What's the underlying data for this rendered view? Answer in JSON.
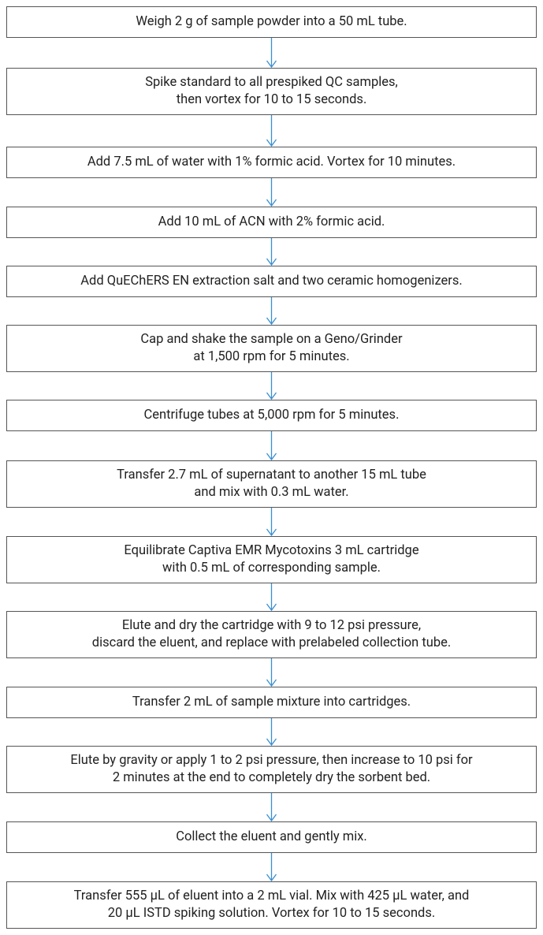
{
  "steps": [
    {
      "lines": [
        "Weigh 2 g of sample powder into a 50 mL tube."
      ]
    },
    {
      "lines": [
        "Spike standard to all prespiked QC samples,",
        "then vortex for 10 to 15 seconds."
      ]
    },
    {
      "lines": [
        "Add 7.5 mL of water with 1% formic acid. Vortex for 10 minutes."
      ]
    },
    {
      "lines": [
        "Add 10 mL of ACN with 2% formic acid."
      ]
    },
    {
      "lines": [
        "Add QuEChERS EN extraction salt and two ceramic homogenizers."
      ]
    },
    {
      "lines": [
        "Cap and shake the sample on a Geno/Grinder",
        "at 1,500 rpm for 5 minutes."
      ]
    },
    {
      "lines": [
        "Centrifuge tubes at 5,000 rpm for 5 minutes."
      ]
    },
    {
      "lines": [
        "Transfer 2.7 mL of supernatant to another 15 mL tube",
        "and mix with 0.3 mL water."
      ]
    },
    {
      "lines": [
        "Equilibrate Captiva EMR Mycotoxins 3 mL cartridge",
        "with 0.5 mL of corresponding sample."
      ]
    },
    {
      "lines": [
        "Elute and dry the cartridge with 9 to 12 psi pressure,",
        "discard the eluent, and replace with prelabeled collection tube."
      ]
    },
    {
      "lines": [
        "Transfer 2 mL of sample mixture into cartridges."
      ]
    },
    {
      "lines": [
        "Elute by gravity or apply 1 to 2 psi pressure, then increase to 10 psi for",
        "2 minutes at the end to completely dry the sorbent bed."
      ]
    },
    {
      "lines": [
        "Collect the eluent and gently mix."
      ]
    },
    {
      "lines": [
        "Transfer 555 µL of eluent into a 2 mL vial. Mix with 425 µL water, and",
        "20 µL ISTD spiking solution. Vortex for 10 to 15 seconds."
      ]
    }
  ]
}
